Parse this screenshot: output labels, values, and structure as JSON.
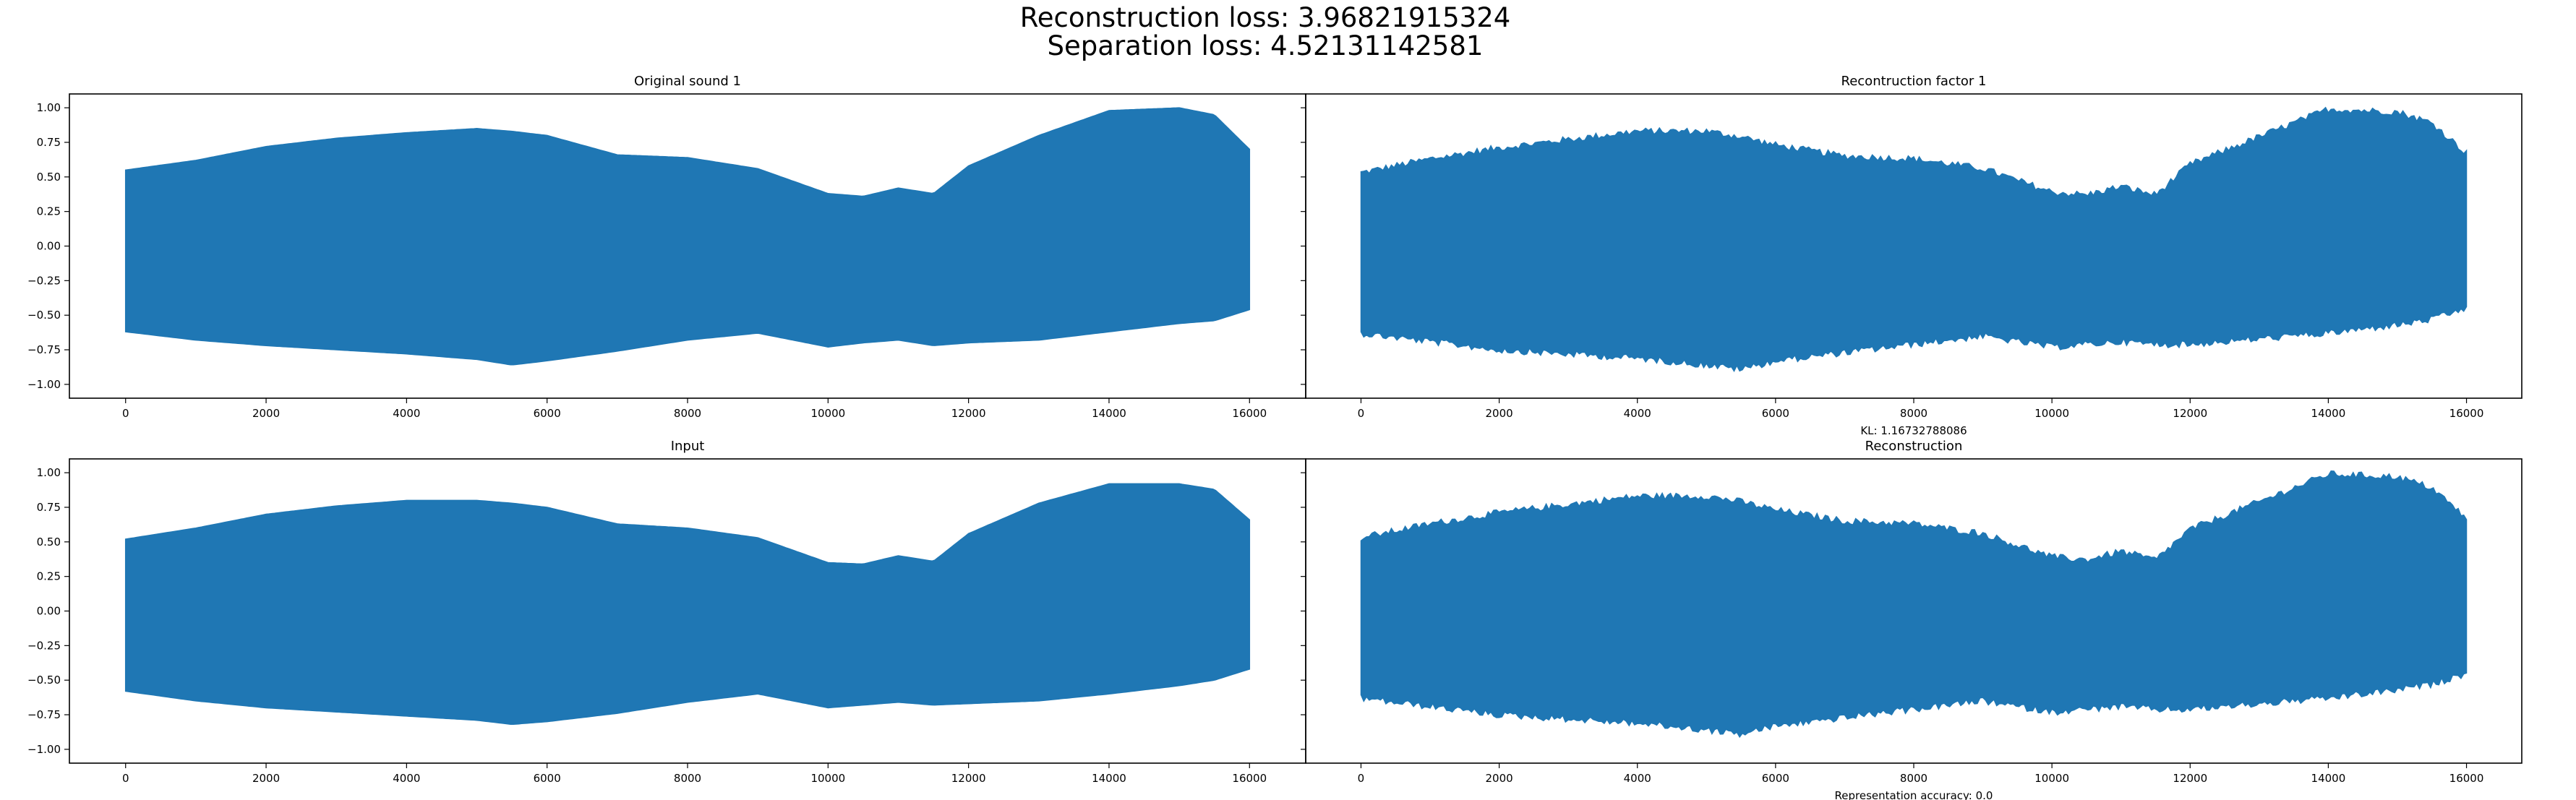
{
  "suptitle": {
    "line1": "Reconstruction loss: 3.96821915324",
    "line2": "Separation loss: 4.52131142581"
  },
  "colors": {
    "waveform": "#1f77b4",
    "axes": "#000000",
    "background": "#ffffff"
  },
  "chart_data": [
    {
      "type": "line",
      "title": "Original sound 1",
      "xlabel": "",
      "xlim": [
        -800,
        16800
      ],
      "ylim": [
        -1.1,
        1.1
      ],
      "x_ticks": [
        0,
        2000,
        4000,
        6000,
        8000,
        10000,
        12000,
        14000,
        16000
      ],
      "y_ticks": [
        -1.0,
        -0.75,
        -0.5,
        -0.25,
        0.0,
        0.25,
        0.5,
        0.75,
        1.0
      ],
      "x_tick_labels": [
        "0",
        "2000",
        "4000",
        "6000",
        "8000",
        "10000",
        "12000",
        "14000",
        "16000"
      ],
      "y_tick_labels": [
        "−1.00",
        "−0.75",
        "−0.50",
        "−0.25",
        "0.00",
        "0.25",
        "0.50",
        "0.75",
        "1.00"
      ],
      "grid": false,
      "envelope": {
        "x": [
          0,
          1000,
          2000,
          3000,
          4000,
          5000,
          5500,
          6000,
          7000,
          8000,
          9000,
          10000,
          10500,
          11000,
          11500,
          12000,
          13000,
          14000,
          15000,
          15500,
          16000
        ],
        "upper": [
          0.55,
          0.62,
          0.72,
          0.78,
          0.82,
          0.85,
          0.83,
          0.8,
          0.66,
          0.64,
          0.56,
          0.38,
          0.36,
          0.42,
          0.38,
          0.58,
          0.8,
          0.98,
          1.0,
          0.95,
          0.7
        ],
        "lower": [
          -0.62,
          -0.68,
          -0.72,
          -0.75,
          -0.78,
          -0.82,
          -0.86,
          -0.83,
          -0.76,
          -0.68,
          -0.63,
          -0.73,
          -0.7,
          -0.68,
          -0.72,
          -0.7,
          -0.68,
          -0.62,
          -0.56,
          -0.54,
          -0.46
        ]
      },
      "noise": 0.0
    },
    {
      "type": "line",
      "title": "Recontruction factor 1",
      "xlabel": "KL: 1.16732788086",
      "xlim": [
        -800,
        16800
      ],
      "ylim": [
        -1.1,
        1.1
      ],
      "x_ticks": [
        0,
        2000,
        4000,
        6000,
        8000,
        10000,
        12000,
        14000,
        16000
      ],
      "y_ticks": [
        -1.0,
        -0.75,
        -0.5,
        -0.25,
        0.0,
        0.25,
        0.5,
        0.75,
        1.0
      ],
      "x_tick_labels": [
        "0",
        "2000",
        "4000",
        "6000",
        "8000",
        "10000",
        "12000",
        "14000",
        "16000"
      ],
      "y_tick_labels": [],
      "grid": false,
      "envelope": {
        "x": [
          0,
          1000,
          2000,
          3000,
          4000,
          5000,
          5500,
          6000,
          7000,
          8000,
          9000,
          10000,
          10500,
          11000,
          11500,
          12000,
          13000,
          14000,
          15000,
          15500,
          16000
        ],
        "upper": [
          0.52,
          0.62,
          0.7,
          0.76,
          0.82,
          0.82,
          0.78,
          0.72,
          0.64,
          0.62,
          0.55,
          0.38,
          0.36,
          0.42,
          0.36,
          0.58,
          0.78,
          0.98,
          0.96,
          0.88,
          0.66
        ],
        "lower": [
          -0.62,
          -0.68,
          -0.74,
          -0.77,
          -0.8,
          -0.85,
          -0.88,
          -0.82,
          -0.76,
          -0.7,
          -0.64,
          -0.72,
          -0.7,
          -0.68,
          -0.7,
          -0.7,
          -0.66,
          -0.62,
          -0.56,
          -0.52,
          -0.44
        ]
      },
      "noise": 0.05
    },
    {
      "type": "line",
      "title": "Input",
      "xlabel": "",
      "xlim": [
        -800,
        16800
      ],
      "ylim": [
        -1.1,
        1.1
      ],
      "x_ticks": [
        0,
        2000,
        4000,
        6000,
        8000,
        10000,
        12000,
        14000,
        16000
      ],
      "y_ticks": [
        -1.0,
        -0.75,
        -0.5,
        -0.25,
        0.0,
        0.25,
        0.5,
        0.75,
        1.0
      ],
      "x_tick_labels": [
        "0",
        "2000",
        "4000",
        "6000",
        "8000",
        "10000",
        "12000",
        "14000",
        "16000"
      ],
      "y_tick_labels": [
        "−1.00",
        "−0.75",
        "−0.50",
        "−0.25",
        "0.00",
        "0.25",
        "0.50",
        "0.75",
        "1.00"
      ],
      "grid": false,
      "envelope": {
        "x": [
          0,
          1000,
          2000,
          3000,
          4000,
          5000,
          5500,
          6000,
          7000,
          8000,
          9000,
          10000,
          10500,
          11000,
          11500,
          12000,
          13000,
          14000,
          15000,
          15500,
          16000
        ],
        "upper": [
          0.52,
          0.6,
          0.7,
          0.76,
          0.8,
          0.8,
          0.78,
          0.75,
          0.63,
          0.6,
          0.53,
          0.35,
          0.34,
          0.4,
          0.36,
          0.56,
          0.78,
          0.92,
          0.92,
          0.88,
          0.66
        ],
        "lower": [
          -0.58,
          -0.65,
          -0.7,
          -0.73,
          -0.76,
          -0.79,
          -0.82,
          -0.8,
          -0.74,
          -0.66,
          -0.6,
          -0.7,
          -0.68,
          -0.66,
          -0.68,
          -0.67,
          -0.65,
          -0.6,
          -0.54,
          -0.5,
          -0.42
        ]
      },
      "noise": 0.0
    },
    {
      "type": "line",
      "title": "Reconstruction",
      "xlabel": "Representation accuracy: 0.0",
      "xlim": [
        -800,
        16800
      ],
      "ylim": [
        -1.1,
        1.1
      ],
      "x_ticks": [
        0,
        2000,
        4000,
        6000,
        8000,
        10000,
        12000,
        14000,
        16000
      ],
      "y_ticks": [
        -1.0,
        -0.75,
        -0.5,
        -0.25,
        0.0,
        0.25,
        0.5,
        0.75,
        1.0
      ],
      "x_tick_labels": [
        "0",
        "2000",
        "4000",
        "6000",
        "8000",
        "10000",
        "12000",
        "14000",
        "16000"
      ],
      "y_tick_labels": [],
      "grid": false,
      "envelope": {
        "x": [
          0,
          1000,
          2000,
          3000,
          4000,
          5000,
          5500,
          6000,
          7000,
          8000,
          9000,
          10000,
          10500,
          11000,
          11500,
          12000,
          13000,
          14000,
          15000,
          15500,
          16000
        ],
        "upper": [
          0.52,
          0.62,
          0.7,
          0.76,
          0.82,
          0.82,
          0.78,
          0.72,
          0.64,
          0.62,
          0.55,
          0.38,
          0.36,
          0.42,
          0.36,
          0.58,
          0.78,
          0.98,
          0.96,
          0.88,
          0.66
        ],
        "lower": [
          -0.62,
          -0.68,
          -0.74,
          -0.77,
          -0.8,
          -0.85,
          -0.88,
          -0.82,
          -0.76,
          -0.7,
          -0.64,
          -0.72,
          -0.7,
          -0.68,
          -0.7,
          -0.7,
          -0.66,
          -0.62,
          -0.56,
          -0.52,
          -0.44
        ]
      },
      "noise": 0.05
    }
  ]
}
